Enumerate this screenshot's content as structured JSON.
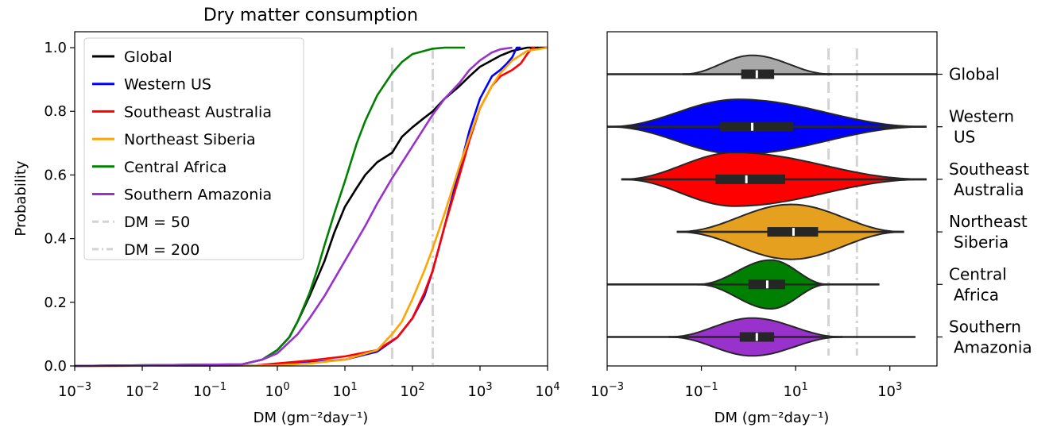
{
  "chart_data": [
    {
      "type": "line",
      "title": "Dry matter consumption",
      "xlabel": "DM (gm⁻²day⁻¹)",
      "ylabel": "Probability",
      "xscale": "log",
      "xlim": [
        0.001,
        10000
      ],
      "ylim": [
        0,
        1.05
      ],
      "xticks": [
        {
          "value": 0.001,
          "base": "10",
          "exp": "−3"
        },
        {
          "value": 0.01,
          "base": "10",
          "exp": "−2"
        },
        {
          "value": 0.1,
          "base": "10",
          "exp": "−1"
        },
        {
          "value": 1,
          "base": "10",
          "exp": "0"
        },
        {
          "value": 10,
          "base": "10",
          "exp": "1"
        },
        {
          "value": 100,
          "base": "10",
          "exp": "2"
        },
        {
          "value": 1000,
          "base": "10",
          "exp": "3"
        },
        {
          "value": 10000,
          "base": "10",
          "exp": "4"
        }
      ],
      "yticks": [
        {
          "value": 0,
          "label": "0.0"
        },
        {
          "value": 0.2,
          "label": "0.2"
        },
        {
          "value": 0.4,
          "label": "0.4"
        },
        {
          "value": 0.6,
          "label": "0.6"
        },
        {
          "value": 0.8,
          "label": "0.8"
        },
        {
          "value": 1.0,
          "label": "1.0"
        }
      ],
      "legend_position": "top-left",
      "series": [
        {
          "name": "Global",
          "color": "#000000",
          "x": [
            0.001,
            0.3,
            0.6,
            1,
            1.5,
            2,
            3,
            5,
            7,
            10,
            15,
            20,
            30,
            50,
            70,
            100,
            150,
            200,
            300,
            500,
            700,
            1000,
            2000,
            3000,
            5000,
            10000
          ],
          "y": [
            0,
            0.005,
            0.02,
            0.05,
            0.09,
            0.14,
            0.22,
            0.33,
            0.42,
            0.5,
            0.56,
            0.6,
            0.64,
            0.67,
            0.72,
            0.75,
            0.78,
            0.8,
            0.84,
            0.88,
            0.91,
            0.94,
            0.975,
            0.99,
            1.0,
            1.0
          ]
        },
        {
          "name": "Western US",
          "color": "#0000ff",
          "x": [
            0.001,
            0.5,
            2,
            10,
            30,
            60,
            100,
            150,
            200,
            300,
            500,
            700,
            1000,
            1500,
            2000,
            2500,
            3000,
            3500,
            4000
          ],
          "y": [
            0,
            0.002,
            0.008,
            0.02,
            0.045,
            0.09,
            0.15,
            0.22,
            0.3,
            0.44,
            0.62,
            0.74,
            0.84,
            0.91,
            0.93,
            0.95,
            0.97,
            1.0,
            1.0
          ]
        },
        {
          "name": "Southeast Australia",
          "color": "#ff0000",
          "x": [
            0.001,
            0.5,
            1,
            3,
            10,
            30,
            60,
            100,
            150,
            200,
            300,
            500,
            700,
            1000,
            1500,
            2000,
            3000,
            4000,
            5000,
            6000,
            6500
          ],
          "y": [
            0,
            0.002,
            0.008,
            0.017,
            0.03,
            0.05,
            0.09,
            0.15,
            0.23,
            0.3,
            0.44,
            0.6,
            0.71,
            0.81,
            0.88,
            0.91,
            0.93,
            0.95,
            0.98,
            1.0,
            1.0
          ]
        },
        {
          "name": "Northeast Siberia",
          "color": "#ffa500",
          "x": [
            0.001,
            1,
            3,
            10,
            30,
            50,
            70,
            100,
            150,
            200,
            300,
            500,
            700,
            1000,
            1500,
            2000,
            3000,
            5000,
            10000
          ],
          "y": [
            0,
            0.002,
            0.008,
            0.02,
            0.05,
            0.1,
            0.14,
            0.21,
            0.3,
            0.37,
            0.48,
            0.63,
            0.72,
            0.81,
            0.88,
            0.92,
            0.96,
            0.99,
            1.0
          ]
        },
        {
          "name": "Central Africa",
          "color": "#008000",
          "x": [
            0.001,
            0.3,
            0.6,
            1,
            1.5,
            2,
            3,
            4,
            5,
            7,
            10,
            15,
            20,
            30,
            50,
            70,
            100,
            150,
            200,
            300,
            500,
            600
          ],
          "y": [
            0,
            0.005,
            0.02,
            0.05,
            0.09,
            0.14,
            0.23,
            0.31,
            0.38,
            0.48,
            0.58,
            0.7,
            0.77,
            0.85,
            0.92,
            0.955,
            0.98,
            0.99,
            0.997,
            1.0,
            1.0,
            1.0
          ]
        },
        {
          "name": "Southern Amazonia",
          "color": "#9932cc",
          "x": [
            0.001,
            0.3,
            0.6,
            1,
            2,
            3,
            5,
            10,
            20,
            30,
            50,
            100,
            200,
            300,
            500,
            700,
            1000,
            1500,
            2000,
            3000
          ],
          "y": [
            0,
            0.005,
            0.02,
            0.04,
            0.1,
            0.15,
            0.22,
            0.33,
            0.44,
            0.51,
            0.59,
            0.69,
            0.79,
            0.84,
            0.89,
            0.93,
            0.96,
            0.985,
            0.995,
            1.0
          ]
        }
      ],
      "reference_lines": [
        {
          "name": "DM = 50",
          "x": 50,
          "style": "dashed",
          "color": "#d3d3d3"
        },
        {
          "name": "DM = 200",
          "x": 200,
          "style": "dash-dot",
          "color": "#d3d3d3"
        }
      ]
    },
    {
      "type": "violin",
      "xlabel": "DM (gm⁻²day⁻¹)",
      "xscale": "log",
      "xlim": [
        0.001,
        10000
      ],
      "xticks": [
        {
          "value": 0.001,
          "base": "10",
          "exp": "−3"
        },
        {
          "value": 0.1,
          "base": "10",
          "exp": "−1"
        },
        {
          "value": 10,
          "base": "10",
          "exp": "1"
        },
        {
          "value": 1000,
          "base": "10",
          "exp": "3"
        }
      ],
      "reference_lines": [
        {
          "x": 50,
          "style": "dashed",
          "color": "#d3d3d3"
        },
        {
          "x": 200,
          "style": "dash-dot",
          "color": "#d3d3d3"
        }
      ],
      "categories": [
        {
          "label": [
            "Global"
          ],
          "color": "#a9a9a9",
          "median": 1.5,
          "q1": 0.7,
          "q3": 3.5,
          "whisker_low": 0.001,
          "whisker_high": 10000,
          "kde_min": 0.04,
          "kde_peak": 1.2,
          "kde_max": 60,
          "half_width": 0.62
        },
        {
          "label": [
            "Western",
            "US"
          ],
          "color": "#0000ff",
          "median": 1.2,
          "q1": 0.25,
          "q3": 9,
          "whisker_low": 0.001,
          "whisker_high": 6000,
          "kde_min": 0.001,
          "kde_peak": 0.6,
          "kde_max": 6000,
          "half_width": 0.9
        },
        {
          "label": [
            "Southeast",
            "Australia"
          ],
          "color": "#ff0000",
          "median": 0.9,
          "q1": 0.2,
          "q3": 6,
          "whisker_low": 0.002,
          "whisker_high": 6000,
          "kde_min": 0.002,
          "kde_peak": 0.5,
          "kde_max": 6000,
          "half_width": 0.88
        },
        {
          "label": [
            "Northeast",
            "Siberia"
          ],
          "color": "#e6a020",
          "median": 9,
          "q1": 2.5,
          "q3": 30,
          "whisker_low": 0.03,
          "whisker_high": 2000,
          "kde_min": 0.03,
          "kde_peak": 8,
          "kde_max": 2000,
          "half_width": 0.9
        },
        {
          "label": [
            "Central",
            "Africa"
          ],
          "color": "#008000",
          "median": 2.5,
          "q1": 1.0,
          "q3": 6,
          "whisker_low": 0.001,
          "whisker_high": 600,
          "kde_min": 0.08,
          "kde_peak": 3,
          "kde_max": 50,
          "half_width": 0.8
        },
        {
          "label": [
            "Southern",
            "Amazonia"
          ],
          "color": "#9932cc",
          "median": 1.5,
          "q1": 0.65,
          "q3": 3.5,
          "whisker_low": 0.001,
          "whisker_high": 3500,
          "kde_min": 0.02,
          "kde_peak": 1.2,
          "kde_max": 100,
          "half_width": 0.62
        }
      ]
    }
  ]
}
